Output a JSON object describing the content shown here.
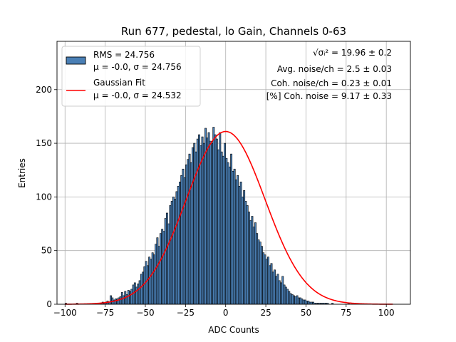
{
  "chart_data": {
    "type": "bar",
    "title": "Run 677, pedestal, lo Gain, Channels 0-63",
    "xlabel": "ADC Counts",
    "ylabel": "Entries",
    "xlim": [
      -105,
      115
    ],
    "ylim": [
      0,
      245
    ],
    "xticks": [
      -100,
      -75,
      -50,
      -25,
      0,
      25,
      50,
      75,
      100
    ],
    "yticks": [
      0,
      50,
      100,
      150,
      200
    ],
    "grid": true,
    "legend_position": "top-left",
    "legend": [
      {
        "line1": "RMS = 24.756",
        "line2": "μ = -0.0, σ = 24.756",
        "kind": "patch"
      },
      {
        "line1": "Gaussian Fit",
        "line2": "μ = -0.0, σ = 24.532",
        "kind": "line"
      }
    ],
    "annotations": [
      {
        "prefix": "√σᵢ²",
        "text": " = 19.96 ± 0.2"
      },
      {
        "text": "Avg. noise/ch = 2.5 ± 0.03"
      },
      {
        "text": "Coh. noise/ch = 0.23 ± 0.01"
      },
      {
        "text": "[%] Coh. noise = 9.17 ± 0.33"
      }
    ],
    "hist": {
      "bin_start": -100,
      "bin_width": 1,
      "counts": [
        1,
        0,
        0,
        0,
        0,
        0,
        0,
        1,
        0,
        0,
        0,
        0,
        0,
        0,
        0,
        0,
        0,
        0,
        0,
        0,
        0,
        0,
        1,
        2,
        1,
        2,
        3,
        2,
        8,
        6,
        4,
        5,
        5,
        6,
        7,
        11,
        8,
        12,
        9,
        13,
        12,
        14,
        18,
        20,
        16,
        19,
        22,
        28,
        30,
        35,
        40,
        36,
        44,
        42,
        48,
        46,
        56,
        62,
        54,
        66,
        70,
        68,
        80,
        85,
        75,
        92,
        96,
        100,
        98,
        105,
        110,
        114,
        120,
        126,
        118,
        130,
        135,
        140,
        132,
        146,
        150,
        142,
        154,
        158,
        148,
        156,
        150,
        164,
        155,
        160,
        152,
        150,
        165,
        158,
        154,
        144,
        160,
        142,
        138,
        150,
        136,
        132,
        128,
        140,
        124,
        126,
        116,
        120,
        110,
        114,
        100,
        106,
        96,
        92,
        86,
        78,
        82,
        72,
        76,
        66,
        60,
        58,
        54,
        48,
        46,
        42,
        44,
        36,
        38,
        30,
        32,
        26,
        28,
        22,
        20,
        26,
        18,
        16,
        14,
        12,
        10,
        9,
        8,
        7,
        8,
        6,
        6,
        5,
        4,
        4,
        3,
        3,
        2,
        2,
        2,
        1,
        1,
        1,
        1,
        1,
        1,
        1,
        1,
        1,
        0,
        0,
        1,
        0,
        0,
        0,
        0,
        0,
        0,
        0,
        0,
        0,
        1,
        0,
        0,
        0,
        0,
        0,
        0,
        0,
        0,
        0,
        0,
        0,
        0,
        0,
        0,
        0,
        0,
        0,
        0,
        0,
        0,
        0,
        0,
        0,
        0,
        0,
        0,
        0,
        0,
        0,
        0,
        0,
        0,
        0,
        0,
        0
      ],
      "bar_color": "#4a7fb5",
      "edge_color": "#000000"
    },
    "fit": {
      "mu": 0.0,
      "sigma": 24.532,
      "amplitude": 161,
      "x_range": [
        -100,
        104
      ],
      "color": "#ff0000"
    }
  }
}
